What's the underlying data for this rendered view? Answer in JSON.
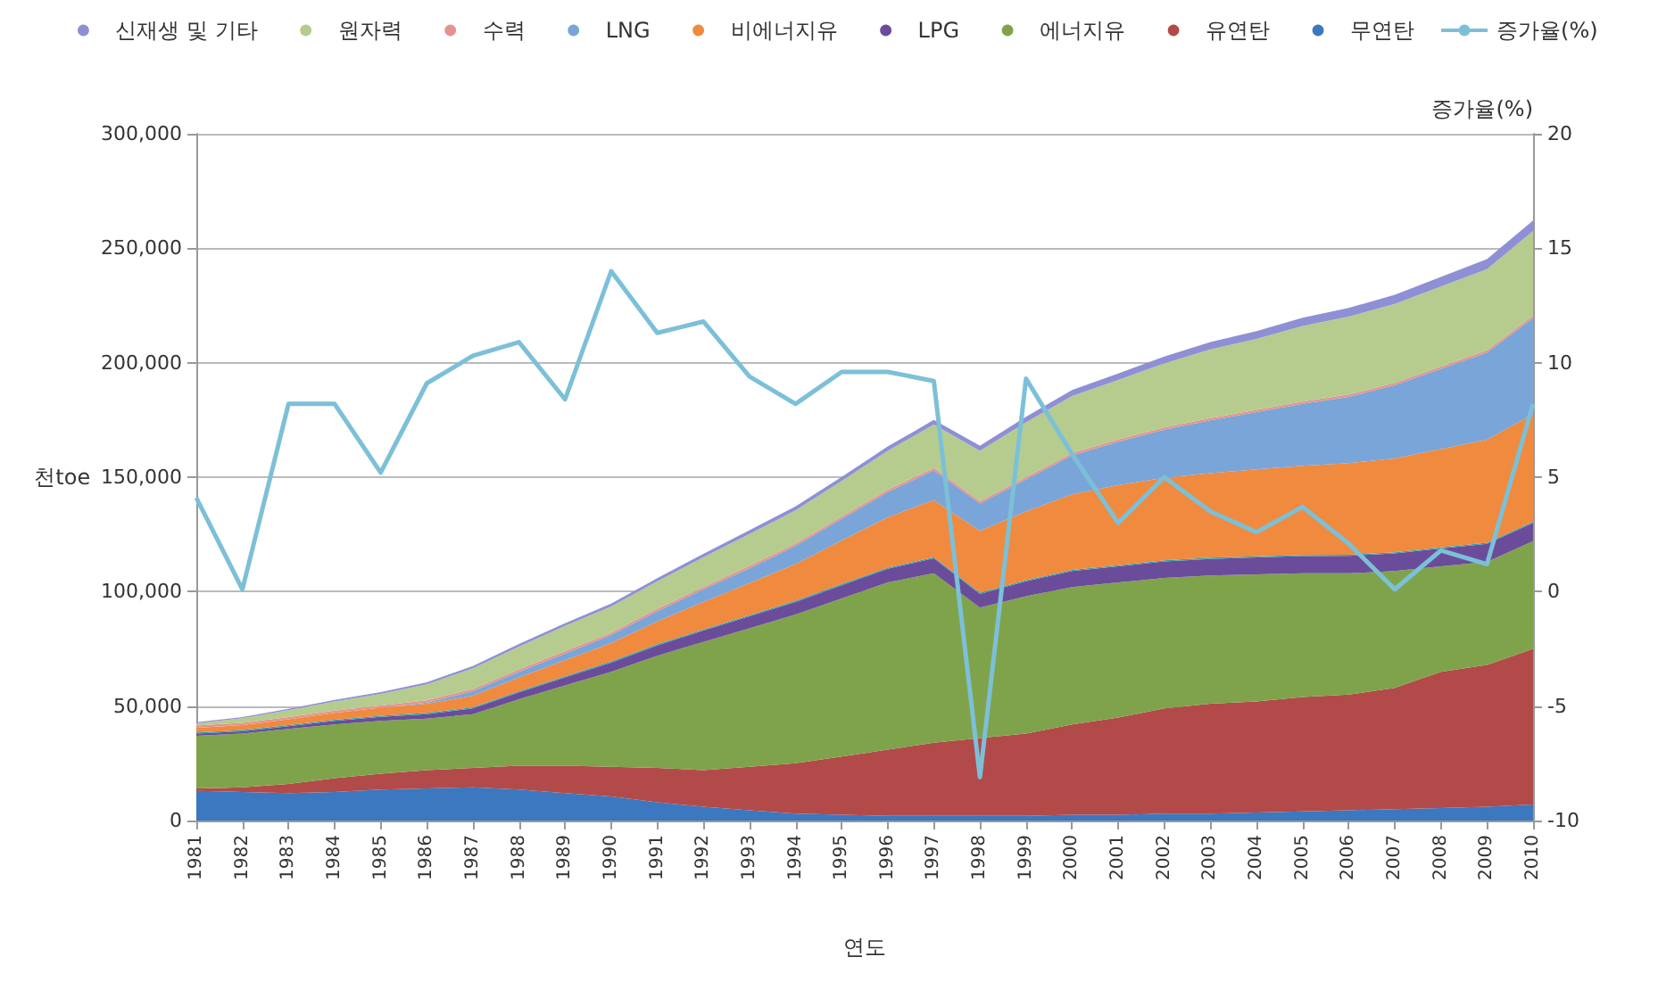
{
  "chart_data": {
    "type": "area",
    "stacked": true,
    "xlabel": "연도",
    "ylabel": "천toe",
    "y2label": "증가율(%)",
    "categories": [
      "1981",
      "1982",
      "1983",
      "1984",
      "1985",
      "1986",
      "1987",
      "1988",
      "1989",
      "1990",
      "1991",
      "1992",
      "1993",
      "1994",
      "1995",
      "1996",
      "1997",
      "1998",
      "1999",
      "2000",
      "2001",
      "2002",
      "2003",
      "2004",
      "2005",
      "2006",
      "2007",
      "2008",
      "2009",
      "2010"
    ],
    "ylim": [
      0,
      300000
    ],
    "yticks": [
      {
        "value": 0,
        "label": "0"
      },
      {
        "value": 50000,
        "label": "50,000"
      },
      {
        "value": 100000,
        "label": "100,000"
      },
      {
        "value": 150000,
        "label": "150,000"
      },
      {
        "value": 200000,
        "label": "200,000"
      },
      {
        "value": 250000,
        "label": "250,000"
      },
      {
        "value": 300000,
        "label": "300,000"
      }
    ],
    "y2lim": [
      -10,
      20
    ],
    "y2ticks": [
      -10,
      -5,
      0,
      5,
      10,
      15,
      20
    ],
    "grid": "y",
    "legend": "top",
    "marker": "none",
    "series": [
      {
        "name": "무연탄",
        "color": "#3b78bf",
        "values": [
          13000,
          12500,
          12000,
          12500,
          13500,
          14000,
          14500,
          13500,
          12000,
          10500,
          8000,
          6000,
          4500,
          3000,
          2500,
          2000,
          2000,
          2000,
          2000,
          2500,
          2500,
          3000,
          3000,
          3500,
          4000,
          4500,
          5000,
          5500,
          6000,
          7000
        ]
      },
      {
        "name": "유연탄",
        "color": "#b24a4a",
        "values": [
          1000,
          2000,
          4000,
          6000,
          7000,
          8000,
          8500,
          10500,
          12000,
          13000,
          15000,
          16000,
          19000,
          22000,
          25500,
          29000,
          32000,
          34000,
          36000,
          39500,
          42500,
          46000,
          48000,
          48500,
          50000,
          50500,
          53000,
          59500,
          62000,
          68000
        ]
      },
      {
        "name": "에너지유",
        "color": "#7fa34a",
        "values": [
          23000,
          23500,
          24000,
          23500,
          23000,
          22500,
          23500,
          29000,
          35000,
          41500,
          49000,
          56000,
          60500,
          65000,
          69000,
          73000,
          74000,
          57000,
          60000,
          60000,
          59000,
          57000,
          56000,
          55500,
          54000,
          53000,
          51000,
          46000,
          45000,
          47000
        ]
      },
      {
        "name": "LPG",
        "color": "#6b4c9a",
        "values": [
          1000,
          1000,
          1200,
          1500,
          1800,
          2000,
          2500,
          3000,
          3500,
          4000,
          4500,
          5000,
          5200,
          5500,
          5800,
          6000,
          6500,
          6000,
          6500,
          7000,
          7000,
          7200,
          7300,
          7400,
          7500,
          7600,
          7700,
          7800,
          7900,
          8000
        ]
      },
      {
        "color": "#2aa0b0",
        "values": [
          500,
          500,
          500,
          500,
          500,
          500,
          500,
          500,
          500,
          500,
          500,
          500,
          500,
          500,
          500,
          500,
          500,
          500,
          500,
          500,
          500,
          500,
          500,
          500,
          500,
          500,
          500,
          500,
          500,
          500
        ]
      },
      {
        "name": "비에너지유",
        "color": "#f08a3e",
        "values": [
          2000,
          2200,
          2500,
          3000,
          3500,
          4000,
          5000,
          6000,
          7000,
          8000,
          10000,
          12000,
          14000,
          16000,
          19000,
          22000,
          25000,
          27000,
          30000,
          33000,
          35000,
          36000,
          37000,
          38000,
          39000,
          40000,
          41000,
          43000,
          45000,
          47000
        ]
      },
      {
        "name": "LNG",
        "color": "#7aa5d8",
        "values": [
          0,
          0,
          0,
          0,
          0,
          500,
          2000,
          2500,
          3000,
          3500,
          4500,
          5500,
          6500,
          8000,
          9500,
          11000,
          13000,
          12000,
          14000,
          17000,
          19000,
          21000,
          23000,
          25000,
          27000,
          29000,
          32000,
          35000,
          38000,
          42000
        ]
      },
      {
        "name": "수력",
        "color": "#e6938f",
        "values": [
          1000,
          1000,
          1000,
          1000,
          1000,
          1000,
          1000,
          1000,
          1000,
          1000,
          1000,
          1000,
          1000,
          1000,
          1000,
          1000,
          1000,
          1000,
          1000,
          1000,
          1000,
          1000,
          1000,
          1000,
          1000,
          1000,
          1000,
          1000,
          1000,
          1000
        ]
      },
      {
        "name": "원자력",
        "color": "#b5cc8e",
        "values": [
          1000,
          2000,
          3000,
          4000,
          5000,
          7000,
          9000,
          10000,
          11000,
          11500,
          12000,
          13000,
          14000,
          14500,
          15500,
          17000,
          19000,
          22000,
          24000,
          25000,
          26000,
          28000,
          30000,
          31000,
          33000,
          34000,
          34500,
          35000,
          35500,
          37000
        ]
      },
      {
        "name": "신재생 및 기타",
        "color": "#8f8fd6",
        "values": [
          500,
          500,
          600,
          700,
          800,
          900,
          1000,
          1100,
          1200,
          1300,
          1400,
          1500,
          1600,
          1700,
          1800,
          1900,
          2000,
          2200,
          2400,
          2600,
          2800,
          3000,
          3200,
          3400,
          3600,
          3800,
          4000,
          4200,
          4400,
          4600
        ]
      },
      {
        "name": "증가율(%)",
        "type": "line",
        "axis": "y2",
        "color": "#7cc0d8",
        "values": [
          4.1,
          0.1,
          8.2,
          8.2,
          5.2,
          9.1,
          10.3,
          10.9,
          8.4,
          14.0,
          11.3,
          11.8,
          9.4,
          8.2,
          9.6,
          9.6,
          9.2,
          -8.1,
          9.3,
          6.0,
          3.0,
          5.0,
          3.5,
          2.6,
          3.7,
          2.1,
          0.1,
          1.8,
          1.2,
          8.2
        ]
      }
    ]
  }
}
